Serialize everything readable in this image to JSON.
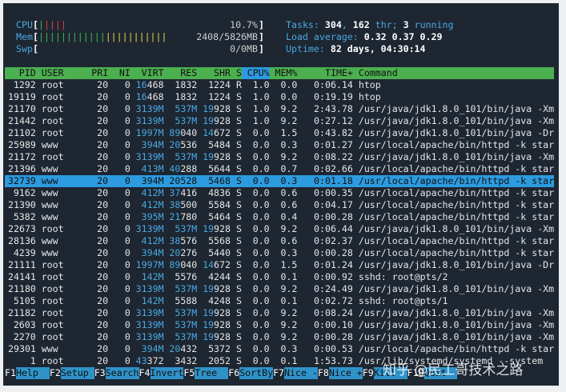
{
  "meters": [
    {
      "label": "CPU",
      "open": "[",
      "bar": "|||||",
      "value": "10.7%",
      "close": "]"
    },
    {
      "label": "Mem",
      "open": "[",
      "bar": "|||||||||||||||||||||||",
      "value": "2408/5826MB",
      "close": "]"
    },
    {
      "label": "Swp",
      "open": "[",
      "bar": "",
      "value": "0/0MB",
      "close": "]"
    }
  ],
  "stats": [
    [
      "Tasks: ",
      "304",
      ", ",
      "162",
      " thr; ",
      "3",
      " running"
    ],
    [
      "Load average: ",
      "0.32",
      " ",
      "0.37",
      " ",
      "0.29"
    ],
    [
      "Uptime: ",
      "82 days, 04:30:14"
    ]
  ],
  "columns": [
    "PID",
    "USER",
    "PRI",
    "NI",
    "VIRT",
    "RES",
    "SHR",
    "S",
    "CPU%",
    "MEM%",
    "TIME+",
    "Command"
  ],
  "processes": [
    [
      "1292",
      "root",
      "20",
      "0",
      "16468",
      "1832",
      "1224",
      "R",
      "1.0",
      "0.0",
      "0:06.14",
      "htop"
    ],
    [
      "19119",
      "root",
      "20",
      "0",
      "16468",
      "1832",
      "1224",
      "S",
      "1.0",
      "0.0",
      "0:19.19",
      "htop"
    ],
    [
      "21170",
      "root",
      "20",
      "0",
      "3139M",
      "537M",
      "19928",
      "S",
      "1.0",
      "9.2",
      "2:43.78",
      "/usr/java/jdk1.8.0_101/bin/java -Xm"
    ],
    [
      "21442",
      "root",
      "20",
      "0",
      "3139M",
      "537M",
      "19928",
      "S",
      "1.0",
      "9.2",
      "0:27.12",
      "/usr/java/jdk1.8.0_101/bin/java -Xm"
    ],
    [
      "21102",
      "root",
      "20",
      "0",
      "1997M",
      "89040",
      "14672",
      "S",
      "0.0",
      "1.5",
      "0:43.82",
      "/usr/java/jdk1.8.0_101/bin/java -Dr"
    ],
    [
      "25989",
      "www",
      "20",
      "0",
      "394M",
      "20536",
      "5484",
      "S",
      "0.0",
      "0.3",
      "0:01.27",
      "/usr/local/apache/bin/httpd -k star"
    ],
    [
      "21172",
      "root",
      "20",
      "0",
      "3139M",
      "537M",
      "19928",
      "S",
      "0.0",
      "9.2",
      "0:08.22",
      "/usr/java/jdk1.8.0_101/bin/java -Xm"
    ],
    [
      "21396",
      "www",
      "20",
      "0",
      "413M",
      "40288",
      "5644",
      "S",
      "0.0",
      "0.7",
      "0:02.66",
      "/usr/local/apache/bin/httpd -k star"
    ],
    [
      "32739",
      "www",
      "20",
      "0",
      "394M",
      "20528",
      "5468",
      "S",
      "0.0",
      "0.3",
      "0:01.18",
      "/usr/local/apache/bin/httpd -k star"
    ],
    [
      "9162",
      "www",
      "20",
      "0",
      "412M",
      "37416",
      "4836",
      "S",
      "0.0",
      "0.6",
      "0:00.35",
      "/usr/local/apache/bin/httpd -k star"
    ],
    [
      "21390",
      "www",
      "20",
      "0",
      "412M",
      "38500",
      "5584",
      "S",
      "0.0",
      "0.6",
      "0:04.17",
      "/usr/local/apache/bin/httpd -k star"
    ],
    [
      "5382",
      "www",
      "20",
      "0",
      "395M",
      "21780",
      "5464",
      "S",
      "0.0",
      "0.4",
      "0:00.28",
      "/usr/local/apache/bin/httpd -k star"
    ],
    [
      "22673",
      "root",
      "20",
      "0",
      "3139M",
      "537M",
      "19928",
      "S",
      "0.0",
      "9.2",
      "0:06.44",
      "/usr/java/jdk1.8.0_101/bin/java -Xm"
    ],
    [
      "28136",
      "www",
      "20",
      "0",
      "412M",
      "38576",
      "5568",
      "S",
      "0.0",
      "0.6",
      "0:02.37",
      "/usr/local/apache/bin/httpd -k star"
    ],
    [
      "4239",
      "www",
      "20",
      "0",
      "394M",
      "20276",
      "5440",
      "S",
      "0.0",
      "0.3",
      "0:00.28",
      "/usr/local/apache/bin/httpd -k star"
    ],
    [
      "21111",
      "root",
      "20",
      "0",
      "1997M",
      "89040",
      "14672",
      "S",
      "0.0",
      "1.5",
      "0:01.24",
      "/usr/java/jdk1.8.0_101/bin/java -Dr"
    ],
    [
      "24141",
      "root",
      "20",
      "0",
      "142M",
      "5576",
      "4244",
      "S",
      "0.0",
      "0.1",
      "0:00.92",
      "sshd: root@pts/2"
    ],
    [
      "21180",
      "root",
      "20",
      "0",
      "3139M",
      "537M",
      "19928",
      "S",
      "0.0",
      "9.2",
      "0:24.49",
      "/usr/java/jdk1.8.0_101/bin/java -Xm"
    ],
    [
      "5105",
      "root",
      "20",
      "0",
      "142M",
      "5588",
      "4248",
      "S",
      "0.0",
      "0.1",
      "0:02.72",
      "sshd: root@pts/1"
    ],
    [
      "21182",
      "root",
      "20",
      "0",
      "3139M",
      "537M",
      "19928",
      "S",
      "0.0",
      "9.2",
      "0:08.24",
      "/usr/java/jdk1.8.0_101/bin/java -Xm"
    ],
    [
      "2603",
      "root",
      "20",
      "0",
      "3139M",
      "537M",
      "19928",
      "S",
      "0.0",
      "9.2",
      "0:00.10",
      "/usr/java/jdk1.8.0_101/bin/java -Xm"
    ],
    [
      "2270",
      "root",
      "20",
      "0",
      "3139M",
      "537M",
      "19928",
      "S",
      "0.0",
      "9.2",
      "0:00.28",
      "/usr/java/jdk1.8.0_101/bin/java -Xm"
    ],
    [
      "29301",
      "www",
      "20",
      "0",
      "394M",
      "20432",
      "5372",
      "S",
      "0.0",
      "0.3",
      "0:00.53",
      "/usr/local/apache/bin/httpd -k star"
    ],
    [
      "1",
      "root",
      "20",
      "0",
      "43372",
      "3432",
      "2052",
      "S",
      "0.0",
      "0.1",
      "1:53.73",
      "/usr/lib/systemd/systemd --system"
    ]
  ],
  "footer": [
    {
      "key": "F1",
      "label": "Help"
    },
    {
      "key": "F2",
      "label": "Setup"
    },
    {
      "key": "F3",
      "label": "Search"
    },
    {
      "key": "F4",
      "label": "Invert"
    },
    {
      "key": "F5",
      "label": "Tree"
    },
    {
      "key": "F6",
      "label": "SortBy"
    },
    {
      "key": "F7",
      "label": "Nice -"
    },
    {
      "key": "F8",
      "label": "Nice +"
    },
    {
      "key": "F9",
      "label": "Kill"
    },
    {
      "key": "F10",
      "label": "Quit"
    }
  ],
  "watermark": "知乎 @民工哥技术之路"
}
